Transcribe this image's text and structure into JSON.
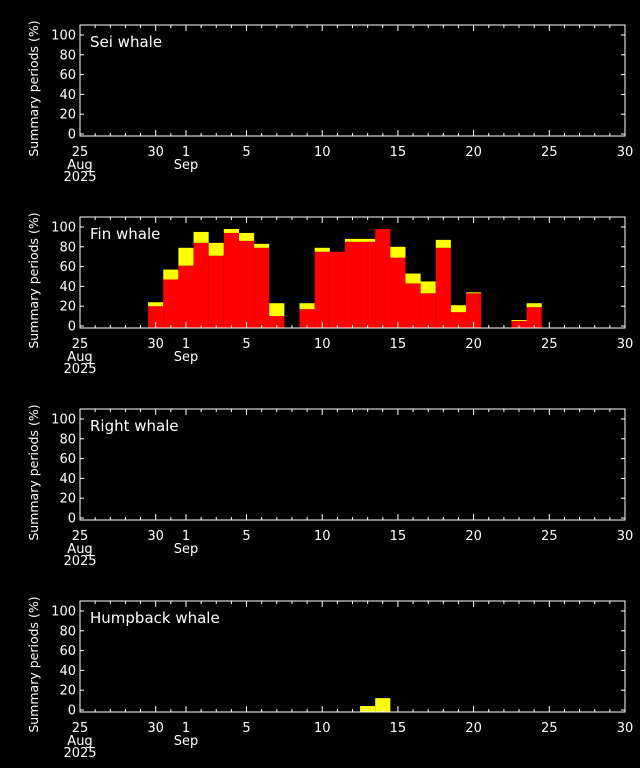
{
  "colors": {
    "background": "#000000",
    "axis": "#ffffff",
    "possibly_detected": "#ffff00",
    "detected": "#ff0000"
  },
  "chart_data": [
    {
      "type": "bar",
      "stacked": true,
      "title": "Sei whale",
      "ylabel": "Summary periods (%)",
      "ylim": [
        0,
        100
      ],
      "yticks": [
        "0",
        "20",
        "40",
        "60",
        "80",
        "100"
      ],
      "xlim": [
        25,
        61
      ],
      "xticks": [
        {
          "x": 25,
          "label": "25",
          "sub": [
            "Aug",
            "2025"
          ]
        },
        {
          "x": 30,
          "label": "30"
        },
        {
          "x": 32,
          "label": "1",
          "sub": [
            "Sep"
          ]
        },
        {
          "x": 36,
          "label": "5"
        },
        {
          "x": 41,
          "label": "10"
        },
        {
          "x": 46,
          "label": "15"
        },
        {
          "x": 51,
          "label": "20"
        },
        {
          "x": 56,
          "label": "25"
        },
        {
          "x": 61,
          "label": "30"
        }
      ],
      "bars": []
    },
    {
      "type": "bar",
      "stacked": true,
      "title": "Fin whale",
      "ylabel": "Summary periods (%)",
      "ylim": [
        0,
        100
      ],
      "yticks": [
        "0",
        "20",
        "40",
        "60",
        "80",
        "100"
      ],
      "xlim": [
        25,
        61
      ],
      "xticks": [
        {
          "x": 25,
          "label": "25",
          "sub": [
            "Aug",
            "2025"
          ]
        },
        {
          "x": 30,
          "label": "30"
        },
        {
          "x": 32,
          "label": "1",
          "sub": [
            "Sep"
          ]
        },
        {
          "x": 36,
          "label": "5"
        },
        {
          "x": 41,
          "label": "10"
        },
        {
          "x": 46,
          "label": "15"
        },
        {
          "x": 51,
          "label": "20"
        },
        {
          "x": 56,
          "label": "25"
        },
        {
          "x": 61,
          "label": "30"
        }
      ],
      "bars": [
        {
          "day": 30,
          "detected": 20,
          "possible": 4
        },
        {
          "day": 31,
          "detected": 47,
          "possible": 10
        },
        {
          "day": 32,
          "detected": 61,
          "possible": 18
        },
        {
          "day": 33,
          "detected": 84,
          "possible": 11
        },
        {
          "day": 34,
          "detected": 71,
          "possible": 13
        },
        {
          "day": 35,
          "detected": 94,
          "possible": 4
        },
        {
          "day": 36,
          "detected": 86,
          "possible": 8
        },
        {
          "day": 37,
          "detected": 79,
          "possible": 4
        },
        {
          "day": 38,
          "detected": 10,
          "possible": 13
        },
        {
          "day": 40,
          "detected": 17,
          "possible": 6
        },
        {
          "day": 41,
          "detected": 75,
          "possible": 4
        },
        {
          "day": 42,
          "detected": 75,
          "possible": 0
        },
        {
          "day": 43,
          "detected": 85,
          "possible": 3
        },
        {
          "day": 44,
          "detected": 85,
          "possible": 3
        },
        {
          "day": 45,
          "detected": 98,
          "possible": 0
        },
        {
          "day": 46,
          "detected": 69,
          "possible": 11
        },
        {
          "day": 47,
          "detected": 43,
          "possible": 10
        },
        {
          "day": 48,
          "detected": 33,
          "possible": 12
        },
        {
          "day": 49,
          "detected": 79,
          "possible": 8
        },
        {
          "day": 50,
          "detected": 14,
          "possible": 7
        },
        {
          "day": 51,
          "detected": 33,
          "possible": 1
        },
        {
          "day": 54,
          "detected": 5,
          "possible": 1
        },
        {
          "day": 55,
          "detected": 19,
          "possible": 4
        }
      ]
    },
    {
      "type": "bar",
      "stacked": true,
      "title": "Right whale",
      "ylabel": "Summary periods (%)",
      "ylim": [
        0,
        100
      ],
      "yticks": [
        "0",
        "20",
        "40",
        "60",
        "80",
        "100"
      ],
      "xlim": [
        25,
        61
      ],
      "xticks": [
        {
          "x": 25,
          "label": "25",
          "sub": [
            "Aug",
            "2025"
          ]
        },
        {
          "x": 30,
          "label": "30"
        },
        {
          "x": 32,
          "label": "1",
          "sub": [
            "Sep"
          ]
        },
        {
          "x": 36,
          "label": "5"
        },
        {
          "x": 41,
          "label": "10"
        },
        {
          "x": 46,
          "label": "15"
        },
        {
          "x": 51,
          "label": "20"
        },
        {
          "x": 56,
          "label": "25"
        },
        {
          "x": 61,
          "label": "30"
        }
      ],
      "bars": []
    },
    {
      "type": "bar",
      "stacked": true,
      "title": "Humpback whale",
      "ylabel": "Summary periods (%)",
      "ylim": [
        0,
        100
      ],
      "yticks": [
        "0",
        "20",
        "40",
        "60",
        "80",
        "100"
      ],
      "xlim": [
        25,
        61
      ],
      "xticks": [
        {
          "x": 25,
          "label": "25",
          "sub": [
            "Aug",
            "2025"
          ]
        },
        {
          "x": 30,
          "label": "30"
        },
        {
          "x": 32,
          "label": "1",
          "sub": [
            "Sep"
          ]
        },
        {
          "x": 36,
          "label": "5"
        },
        {
          "x": 41,
          "label": "10"
        },
        {
          "x": 46,
          "label": "15"
        },
        {
          "x": 51,
          "label": "20"
        },
        {
          "x": 56,
          "label": "25"
        },
        {
          "x": 61,
          "label": "30"
        }
      ],
      "bars": [
        {
          "day": 44,
          "detected": 0,
          "possible": 4
        },
        {
          "day": 45,
          "detected": 0,
          "possible": 12
        }
      ]
    }
  ]
}
